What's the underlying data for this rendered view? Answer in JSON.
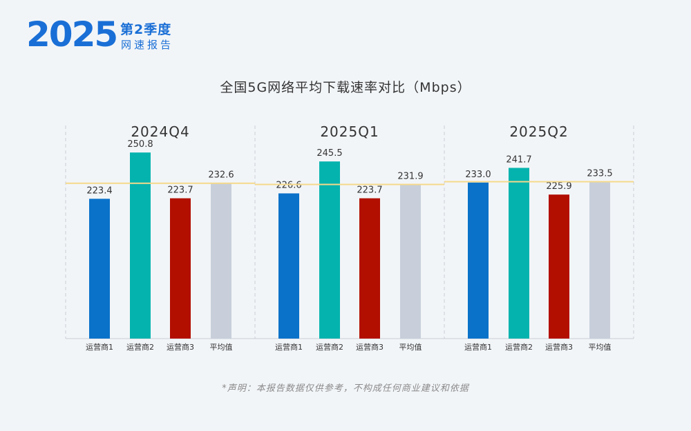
{
  "brand": {
    "year": "2025",
    "quarter_label": "第2季度",
    "report_label": "网速报告",
    "accent": "#1a6fd6"
  },
  "disclaimer": "*声明：本报告数据仅供参考，不构成任何商业建议和依据",
  "chart_data": {
    "type": "bar",
    "title": "全国5G网络平均下载速率对比（Mbps）",
    "xlabel": "",
    "ylabel": "",
    "ylim": [
      0,
      260
    ],
    "grid": false,
    "categories": [
      "运营商1",
      "运营商2",
      "运营商3",
      "平均值"
    ],
    "colors": [
      "#0a72c9",
      "#05b3ae",
      "#b20f00",
      "#c8cfdb"
    ],
    "average_line_color": "#f5d98a",
    "panels": [
      {
        "name": "2024Q4",
        "values": [
          223.4,
          250.8,
          223.7,
          232.6
        ]
      },
      {
        "name": "2025Q1",
        "values": [
          226.6,
          245.5,
          223.7,
          231.9
        ]
      },
      {
        "name": "2025Q2",
        "values": [
          233.0,
          241.7,
          225.9,
          233.5
        ]
      }
    ]
  }
}
